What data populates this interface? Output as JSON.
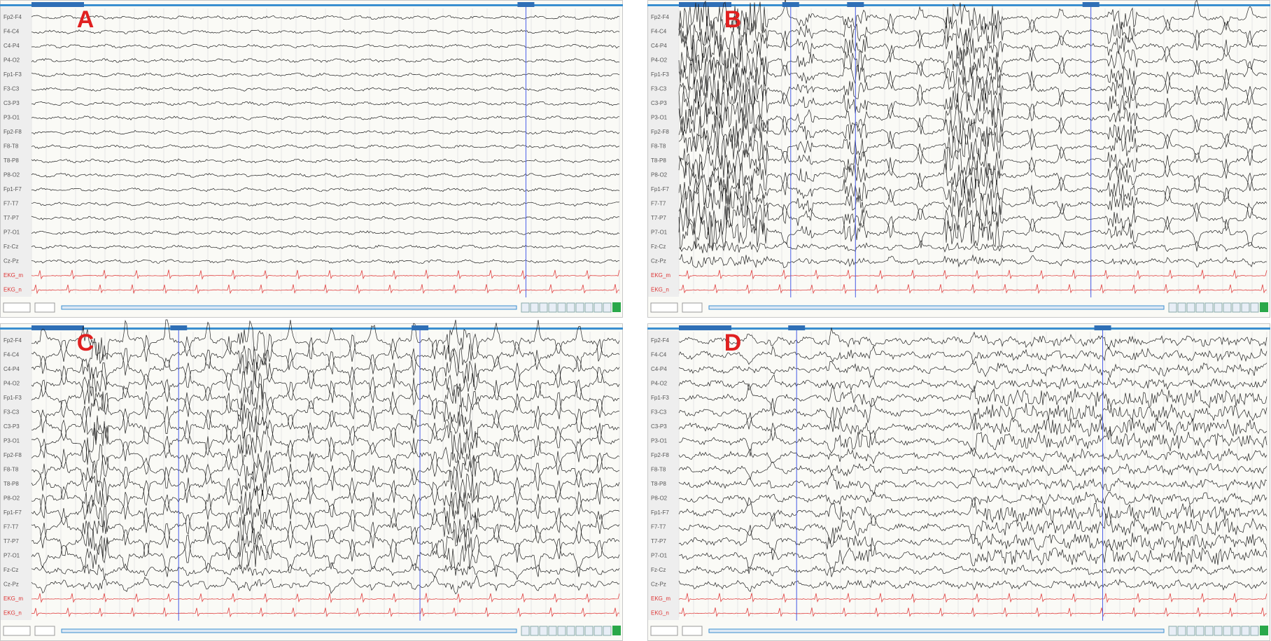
{
  "panels": [
    {
      "label": "A"
    },
    {
      "label": "B"
    },
    {
      "label": "C"
    },
    {
      "label": "D"
    }
  ],
  "channels": [
    "Fp2-F4",
    "F4-C4",
    "C4-P4",
    "P4-O2",
    "Fp1-F3",
    "F3-C3",
    "C3-P3",
    "P3-O1",
    "Fp2-F8",
    "F8-T8",
    "T8-P8",
    "P8-O2",
    "Fp1-F7",
    "F7-T7",
    "T7-P7",
    "P7-O1",
    "Fz-Cz",
    "Cz-Pz",
    "EKG_m",
    "EKG_n"
  ]
}
